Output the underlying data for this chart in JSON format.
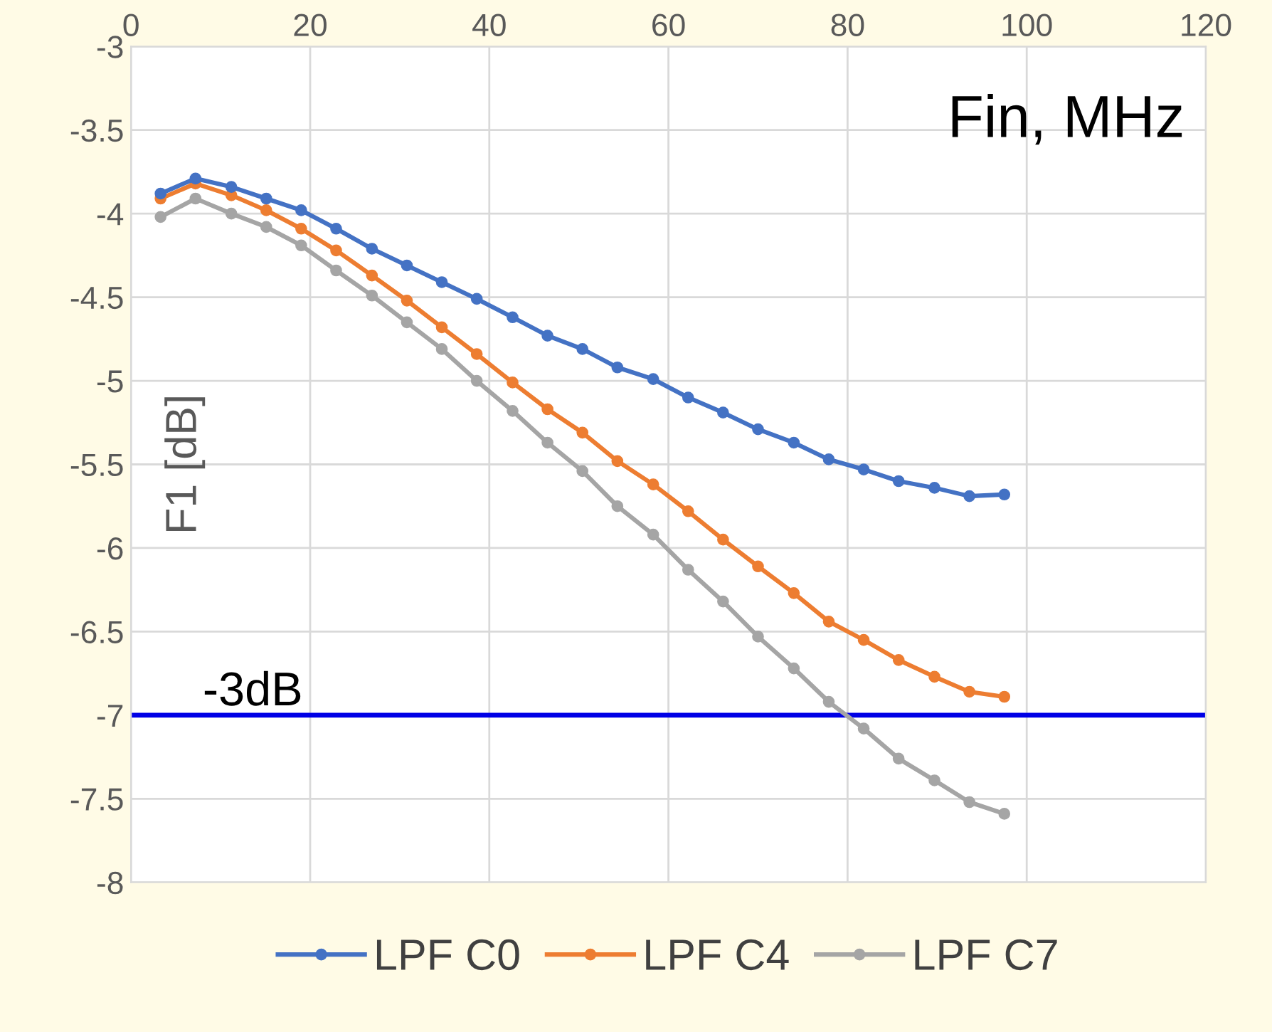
{
  "chart_data": {
    "type": "line",
    "xlabel": "Fin, MHz",
    "ylabel": "F1 [dB]",
    "x": [
      3.3,
      7.2,
      11.2,
      15.1,
      19.0,
      22.9,
      26.9,
      30.8,
      34.7,
      38.6,
      42.6,
      46.5,
      50.4,
      54.3,
      58.3,
      62.2,
      66.1,
      70.0,
      74.0,
      77.9,
      81.8,
      85.7,
      89.7,
      93.6,
      97.5
    ],
    "series": [
      {
        "name": "LPF C0",
        "color": "#4472c4",
        "values": [
          -3.88,
          -3.79,
          -3.84,
          -3.91,
          -3.98,
          -4.09,
          -4.21,
          -4.31,
          -4.41,
          -4.51,
          -4.62,
          -4.73,
          -4.81,
          -4.92,
          -4.99,
          -5.1,
          -5.19,
          -5.29,
          -5.37,
          -5.47,
          -5.53,
          -5.6,
          -5.64,
          -5.69,
          -5.68
        ]
      },
      {
        "name": "LPF C4",
        "color": "#ed7d31",
        "values": [
          -3.91,
          -3.82,
          -3.89,
          -3.98,
          -4.09,
          -4.22,
          -4.37,
          -4.52,
          -4.68,
          -4.84,
          -5.01,
          -5.17,
          -5.31,
          -5.48,
          -5.62,
          -5.78,
          -5.95,
          -6.11,
          -6.27,
          -6.44,
          -6.55,
          -6.67,
          -6.77,
          -6.86,
          -6.89
        ]
      },
      {
        "name": "LPF C7",
        "color": "#a5a5a5",
        "values": [
          -4.02,
          -3.91,
          -4.0,
          -4.08,
          -4.19,
          -4.34,
          -4.49,
          -4.65,
          -4.81,
          -5.0,
          -5.18,
          -5.37,
          -5.54,
          -5.75,
          -5.92,
          -6.13,
          -6.32,
          -6.53,
          -6.72,
          -6.92,
          -7.08,
          -7.26,
          -7.39,
          -7.52,
          -7.59
        ]
      }
    ],
    "xlim": [
      0,
      120
    ],
    "xticks": [
      0,
      20,
      40,
      60,
      80,
      100,
      120
    ],
    "ylim": [
      -8,
      -3
    ],
    "yticks": [
      -8,
      -7.5,
      -7,
      -6.5,
      -6,
      -5.5,
      -5,
      -4.5,
      -4,
      -3.5,
      -3
    ],
    "ref_lines": [
      {
        "axis": "y",
        "value": -7,
        "label": "-3dB",
        "color": "#0000e6"
      }
    ],
    "grid": true,
    "legend": "bottom",
    "marker": "circle",
    "line_style": "solid"
  }
}
